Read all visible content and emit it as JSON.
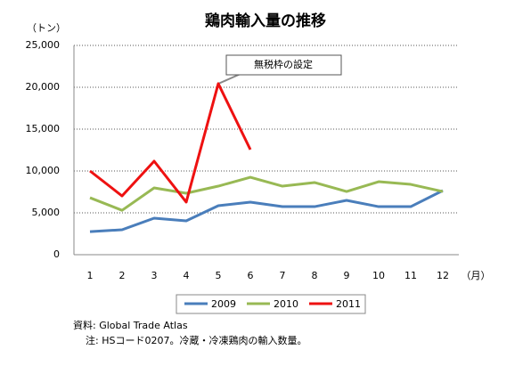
{
  "chart_data": {
    "type": "line",
    "title": "鶏肉輸入量の推移",
    "y_axis_label": "（トン）",
    "x_axis_label": "（月）",
    "categories": [
      "1",
      "2",
      "3",
      "4",
      "5",
      "6",
      "7",
      "8",
      "9",
      "10",
      "11",
      "12"
    ],
    "series": [
      {
        "name": "2009",
        "color": "#4a7ebb",
        "values": [
          2750,
          2980,
          4360,
          4040,
          5850,
          6280,
          5740,
          5740,
          6490,
          5740,
          5740,
          7660
        ]
      },
      {
        "name": "2010",
        "color": "#98b954",
        "values": [
          6800,
          5300,
          7980,
          7340,
          8190,
          9250,
          8190,
          8620,
          7550,
          8720,
          8400,
          7550
        ]
      },
      {
        "name": "2011",
        "color": "#ee1111",
        "values": [
          10000,
          7020,
          11170,
          6280,
          20430,
          12550,
          null,
          null,
          null,
          null,
          null,
          null
        ]
      }
    ],
    "ylim": [
      0,
      25000
    ],
    "yticks": [
      0,
      {
        "value": 5000,
        "label": "5,000"
      },
      {
        "value": 10000,
        "label": "10,000"
      },
      {
        "value": 15000,
        "label": "15,000"
      },
      {
        "value": 20000,
        "label": "20,000"
      },
      {
        "value": 25000,
        "label": "25,000"
      }
    ],
    "grid": true,
    "annotation": "無税枠の設定",
    "source": "資料: Global Trade Atlas",
    "note": "注: HSコード0207。冷蔵・冷凍鶏肉の輸入数量。"
  }
}
